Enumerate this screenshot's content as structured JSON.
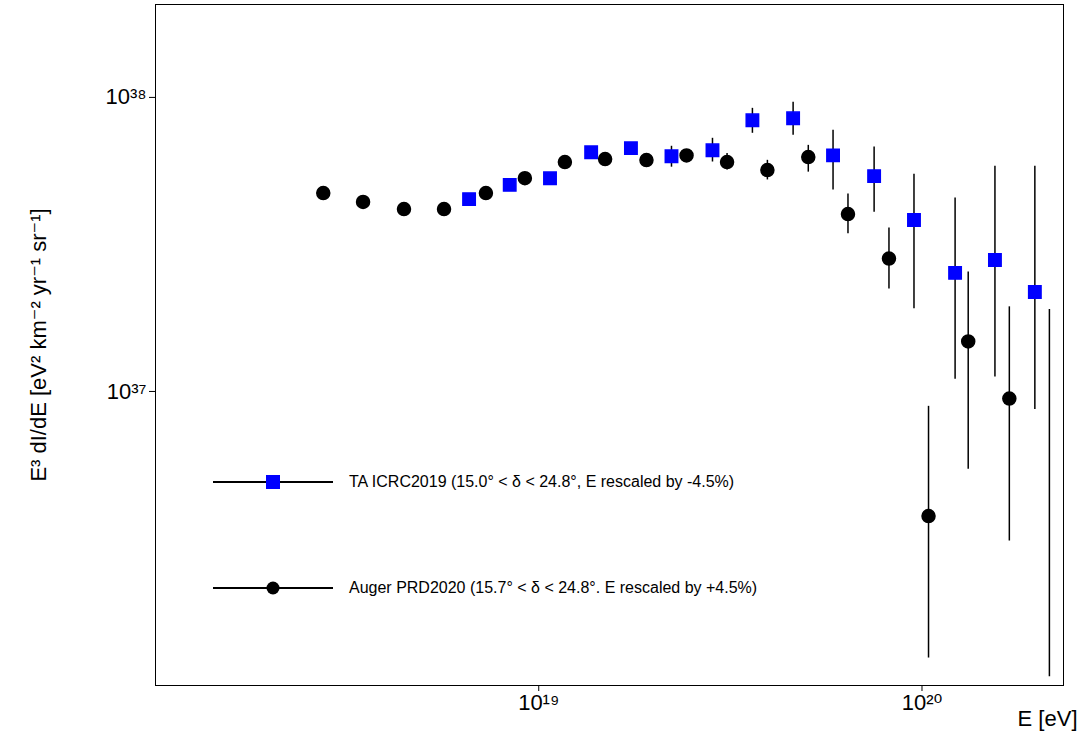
{
  "chart_data": {
    "type": "scatter",
    "xlabel": "E [eV]",
    "ylabel": "E³ dI/dE [eV² km⁻² yr⁻¹ sr⁻¹]",
    "log": true,
    "grid": false,
    "legend": "lower left",
    "xlim": [
      1e+18,
      2.34e+20
    ],
    "ylim": [
      1e+36,
      2.07e+38
    ],
    "xticks": [
      {
        "value": 1e+19,
        "label": "10¹⁹"
      },
      {
        "value": 1e+20,
        "label": "10²⁰"
      }
    ],
    "yticks": [
      {
        "value": 1e+37,
        "label": "10³⁷"
      },
      {
        "value": 1e+38,
        "label": "10³⁸"
      }
    ],
    "series": [
      {
        "name": "TA ICRC2019 (15.0° < δ < 24.8°, E rescaled by -4.5%)",
        "color": "#0000ff",
        "marker": "square",
        "x": [
          6.58e+18,
          8.4e+18,
          1.07e+19,
          1.37e+19,
          1.74e+19,
          2.22e+19,
          2.84e+19,
          3.61e+19,
          4.61e+19,
          5.86e+19,
          7.5e+19,
          9.53e+19,
          1.22e+20,
          1.55e+20,
          1.97e+20
        ],
        "values": [
          4.51e+37,
          5.04e+37,
          5.31e+37,
          6.51e+37,
          6.72e+37,
          6.31e+37,
          6.61e+37,
          8.36e+37,
          8.49e+37,
          6.35e+37,
          5.4e+37,
          3.83e+37,
          2.53e+37,
          2.8e+37,
          2.18e+37
        ],
        "err_low": [
          4.42e+37,
          4.94e+37,
          5.2e+37,
          6.38e+37,
          6.59e+37,
          5.79e+37,
          6.03e+37,
          7.55e+37,
          7.43e+37,
          4.84e+37,
          4.07e+37,
          1.91e+37,
          1.1e+37,
          1.12e+37,
          8.69e+36
        ],
        "err_high": [
          4.6e+37,
          5.14e+37,
          5.42e+37,
          6.64e+37,
          6.85e+37,
          6.82e+37,
          7.26e+37,
          9.18e+37,
          9.62e+37,
          7.73e+37,
          6.78e+37,
          5.48e+37,
          4.55e+37,
          5.83e+37,
          5.83e+37
        ]
      },
      {
        "name": "Auger PRD2020 (15.7° < δ < 24.8°. E rescaled by +4.5%)",
        "color": "#000000",
        "marker": "circle",
        "x": [
          2.74e+18,
          3.48e+18,
          4.45e+18,
          5.66e+18,
          7.28e+18,
          9.2e+18,
          1.17e+19,
          1.49e+19,
          1.91e+19,
          2.43e+19,
          3.1e+19,
          3.95e+19,
          5.05e+19,
          6.41e+19,
          8.2e+19,
          1.04e+20,
          1.32e+20,
          1.69e+20,
          2.15e+20
        ],
        "values": [
          4.73e+37,
          4.41e+37,
          4.17e+37,
          4.17e+37,
          4.73e+37,
          5.31e+37,
          6.03e+37,
          6.17e+37,
          6.12e+37,
          6.35e+37,
          6.03e+37,
          5.66e+37,
          6.27e+37,
          4.01e+37,
          2.83e+37,
          3.77e+36,
          1.48e+37,
          9.46e+36,
          null
        ],
        "err_low": [
          4.64e+37,
          4.32e+37,
          4.09e+37,
          4.09e+37,
          4.64e+37,
          5.2e+37,
          5.91e+37,
          6.05e+37,
          5.97e+37,
          6.2e+37,
          5.66e+37,
          5.24e+37,
          5.57e+37,
          3.44e+37,
          2.23e+37,
          1.24e+36,
          5.44e+36,
          3.1e+36,
          1.07e+36
        ],
        "err_high": [
          4.82e+37,
          4.5e+37,
          4.25e+37,
          4.25e+37,
          4.82e+37,
          5.42e+37,
          6.15e+37,
          6.29e+37,
          6.27e+37,
          6.5e+37,
          6.45e+37,
          6.11e+37,
          6.87e+37,
          4.69e+37,
          3.6e+37,
          8.9e+36,
          2.55e+37,
          1.94e+37,
          1.9e+37
        ]
      }
    ]
  }
}
